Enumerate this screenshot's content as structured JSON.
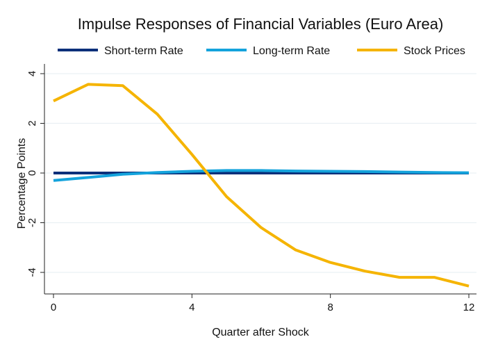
{
  "chart_data": {
    "type": "line",
    "title": "Impulse Responses of Financial Variables (Euro Area)",
    "xlabel": "Quarter after Shock",
    "ylabel": "Percentage Points",
    "xlim": [
      0,
      12
    ],
    "ylim": [
      -4.8,
      4.2
    ],
    "x": [
      0,
      1,
      2,
      3,
      4,
      5,
      6,
      7,
      8,
      9,
      10,
      11,
      12
    ],
    "xticks": [
      0,
      4,
      8,
      12
    ],
    "yticks": [
      -4,
      -2,
      0,
      2,
      4
    ],
    "grid": "horizontal",
    "legend_position": "top",
    "series": [
      {
        "name": "Short-term Rate",
        "color": "#0a2f7a",
        "values": [
          0,
          0,
          0,
          0,
          0,
          0,
          0,
          0,
          0,
          0,
          0,
          0,
          0
        ]
      },
      {
        "name": "Long-term Rate",
        "color": "#14a3dc",
        "values": [
          -0.3,
          -0.18,
          -0.05,
          0.02,
          0.07,
          0.1,
          0.1,
          0.08,
          0.07,
          0.06,
          0.04,
          0.02,
          0.01
        ]
      },
      {
        "name": "Stock Prices",
        "color": "#f5b400",
        "values": [
          2.9,
          3.57,
          3.52,
          2.37,
          0.75,
          -0.95,
          -2.2,
          -3.1,
          -3.6,
          -3.95,
          -4.2,
          -4.2,
          -4.55
        ]
      }
    ]
  }
}
